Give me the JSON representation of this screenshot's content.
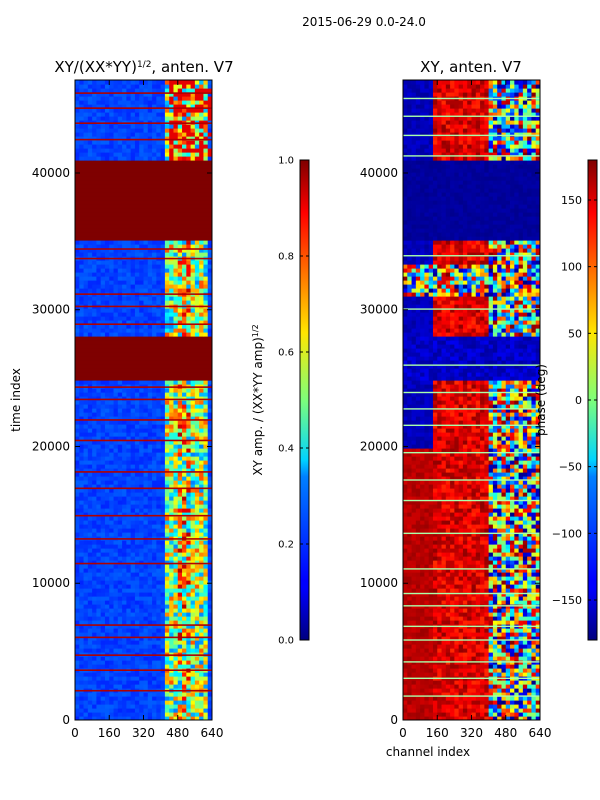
{
  "figure": {
    "suptitle": "2015-06-29 0.0-24.0"
  },
  "chart_data": [
    {
      "type": "heatmap",
      "title_main": "XY/(XX*YY)",
      "title_exp": "1/2",
      "title_suffix": ", anten. V7",
      "xlabel": "",
      "ylabel": "time index",
      "xlim": [
        0,
        640
      ],
      "ylim": [
        0,
        46800
      ],
      "xticks": [
        0,
        160,
        320,
        480,
        640
      ],
      "yticks": [
        0,
        10000,
        20000,
        30000,
        40000
      ],
      "colormap": "jet",
      "colorbar": {
        "label_main": "XY amp. / (XX*YY amp)",
        "label_exp": "1/2",
        "range": [
          0.0,
          1.0
        ],
        "ticks": [
          "0.0",
          "0.2",
          "0.4",
          "0.6",
          "0.8",
          "1.0"
        ]
      },
      "saturated_bands": [
        [
          25000,
          28000
        ],
        [
          35000,
          41000
        ]
      ],
      "notes": "normalized XY amplitude; mostly low (blue) with bright structure near channels 420-600"
    },
    {
      "type": "heatmap",
      "title": "XY, anten. V7",
      "xlabel": "channel index",
      "ylabel": "",
      "xlim": [
        0,
        640
      ],
      "ylim": [
        0,
        46800
      ],
      "xticks": [
        0,
        160,
        320,
        480,
        640
      ],
      "yticks": [
        0,
        10000,
        20000,
        30000,
        40000
      ],
      "colormap": "jet",
      "colorbar": {
        "label": "phase (deg)",
        "range": [
          -180,
          180
        ],
        "ticks": [
          "150",
          "100",
          "50",
          "0",
          "−50",
          "−100",
          "−150"
        ]
      },
      "notes": "XY phase; low-phase band 35000-41000, noisy band 31000-33000"
    }
  ]
}
